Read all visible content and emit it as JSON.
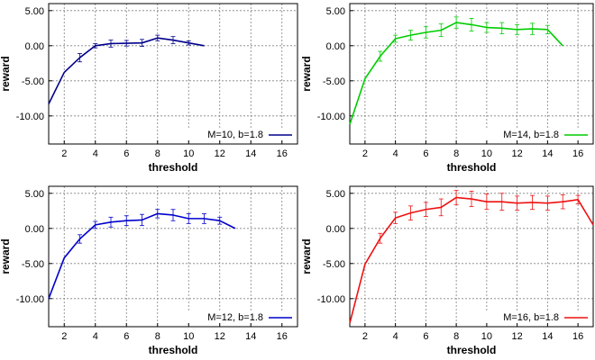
{
  "chart_data": [
    {
      "type": "line",
      "xlabel": "threshold",
      "ylabel": "reward",
      "xlim": [
        1,
        17
      ],
      "ylim": [
        -14,
        6
      ],
      "xticks": [
        "2",
        "4",
        "6",
        "8",
        "10",
        "12",
        "14",
        "16"
      ],
      "yticks": [
        "5.00",
        "0.00",
        "-5.00",
        "-10.00"
      ],
      "grid": true,
      "legend": "bottom-right",
      "series": [
        {
          "name": "M=10, b=1.8",
          "color": "#00008b",
          "x": [
            1,
            2,
            3,
            4,
            5,
            6,
            7,
            8,
            9,
            10,
            11
          ],
          "y": [
            -8.3,
            -3.8,
            -1.7,
            0.0,
            0.3,
            0.35,
            0.4,
            1.1,
            0.8,
            0.4,
            0.0
          ],
          "err": [
            0,
            0,
            0.6,
            0.3,
            0.5,
            0.4,
            0.5,
            0.4,
            0.5,
            0.3,
            0
          ]
        }
      ]
    },
    {
      "type": "line",
      "xlabel": "threshold",
      "ylabel": "reward",
      "xlim": [
        1,
        17
      ],
      "ylim": [
        -14,
        6
      ],
      "xticks": [
        "2",
        "4",
        "6",
        "8",
        "10",
        "12",
        "14",
        "16"
      ],
      "yticks": [
        "5.00",
        "0.00",
        "-5.00",
        "-10.00"
      ],
      "grid": true,
      "legend": "bottom-right",
      "series": [
        {
          "name": "M=14, b=1.8",
          "color": "#00cc00",
          "x": [
            1,
            2,
            3,
            4,
            5,
            6,
            7,
            8,
            9,
            10,
            11,
            12,
            13,
            14,
            15
          ],
          "y": [
            -11.2,
            -4.7,
            -1.5,
            1.0,
            1.5,
            1.9,
            2.2,
            3.3,
            3.0,
            2.6,
            2.5,
            2.3,
            2.4,
            2.3,
            0.0
          ],
          "err": [
            0,
            0,
            0.7,
            0.5,
            0.7,
            0.8,
            0.9,
            0.8,
            0.9,
            0.7,
            0.8,
            0.7,
            0.8,
            0.6,
            0
          ]
        }
      ]
    },
    {
      "type": "line",
      "xlabel": "threshold",
      "ylabel": "reward",
      "xlim": [
        1,
        17
      ],
      "ylim": [
        -14,
        6
      ],
      "xticks": [
        "2",
        "4",
        "6",
        "8",
        "10",
        "12",
        "14",
        "16"
      ],
      "yticks": [
        "5.00",
        "0.00",
        "-5.00",
        "-10.00"
      ],
      "grid": true,
      "legend": "bottom-right",
      "series": [
        {
          "name": "M=12, b=1.8",
          "color": "#0000cc",
          "x": [
            1,
            2,
            3,
            4,
            5,
            6,
            7,
            8,
            9,
            10,
            11,
            12,
            13
          ],
          "y": [
            -10.0,
            -4.2,
            -1.5,
            0.5,
            0.9,
            1.1,
            1.2,
            2.1,
            1.9,
            1.4,
            1.4,
            1.1,
            0.0
          ],
          "err": [
            0,
            0,
            0.6,
            0.5,
            0.7,
            0.7,
            0.8,
            0.6,
            0.8,
            0.7,
            0.7,
            0.5,
            0
          ]
        }
      ]
    },
    {
      "type": "line",
      "xlabel": "threshold",
      "ylabel": "reward",
      "xlim": [
        1,
        17
      ],
      "ylim": [
        -14,
        6
      ],
      "xticks": [
        "2",
        "4",
        "6",
        "8",
        "10",
        "12",
        "14",
        "16"
      ],
      "yticks": [
        "5.00",
        "0.00",
        "-5.00",
        "-10.00"
      ],
      "grid": true,
      "legend": "bottom-right",
      "series": [
        {
          "name": "M=16, b=1.8",
          "color": "#ee1111",
          "x": [
            1,
            2,
            3,
            4,
            5,
            6,
            7,
            8,
            9,
            10,
            11,
            12,
            13,
            14,
            15,
            16,
            17
          ],
          "y": [
            -13.5,
            -5.1,
            -1.4,
            1.5,
            2.2,
            2.7,
            3.0,
            4.4,
            4.2,
            3.8,
            3.8,
            3.6,
            3.7,
            3.6,
            3.8,
            4.1,
            0.5
          ],
          "err": [
            0,
            0,
            0.7,
            0.8,
            1.0,
            1.0,
            1.2,
            1.0,
            1.1,
            1.1,
            1.2,
            1.0,
            1.0,
            1.0,
            1.0,
            0.6,
            0
          ]
        }
      ]
    }
  ]
}
